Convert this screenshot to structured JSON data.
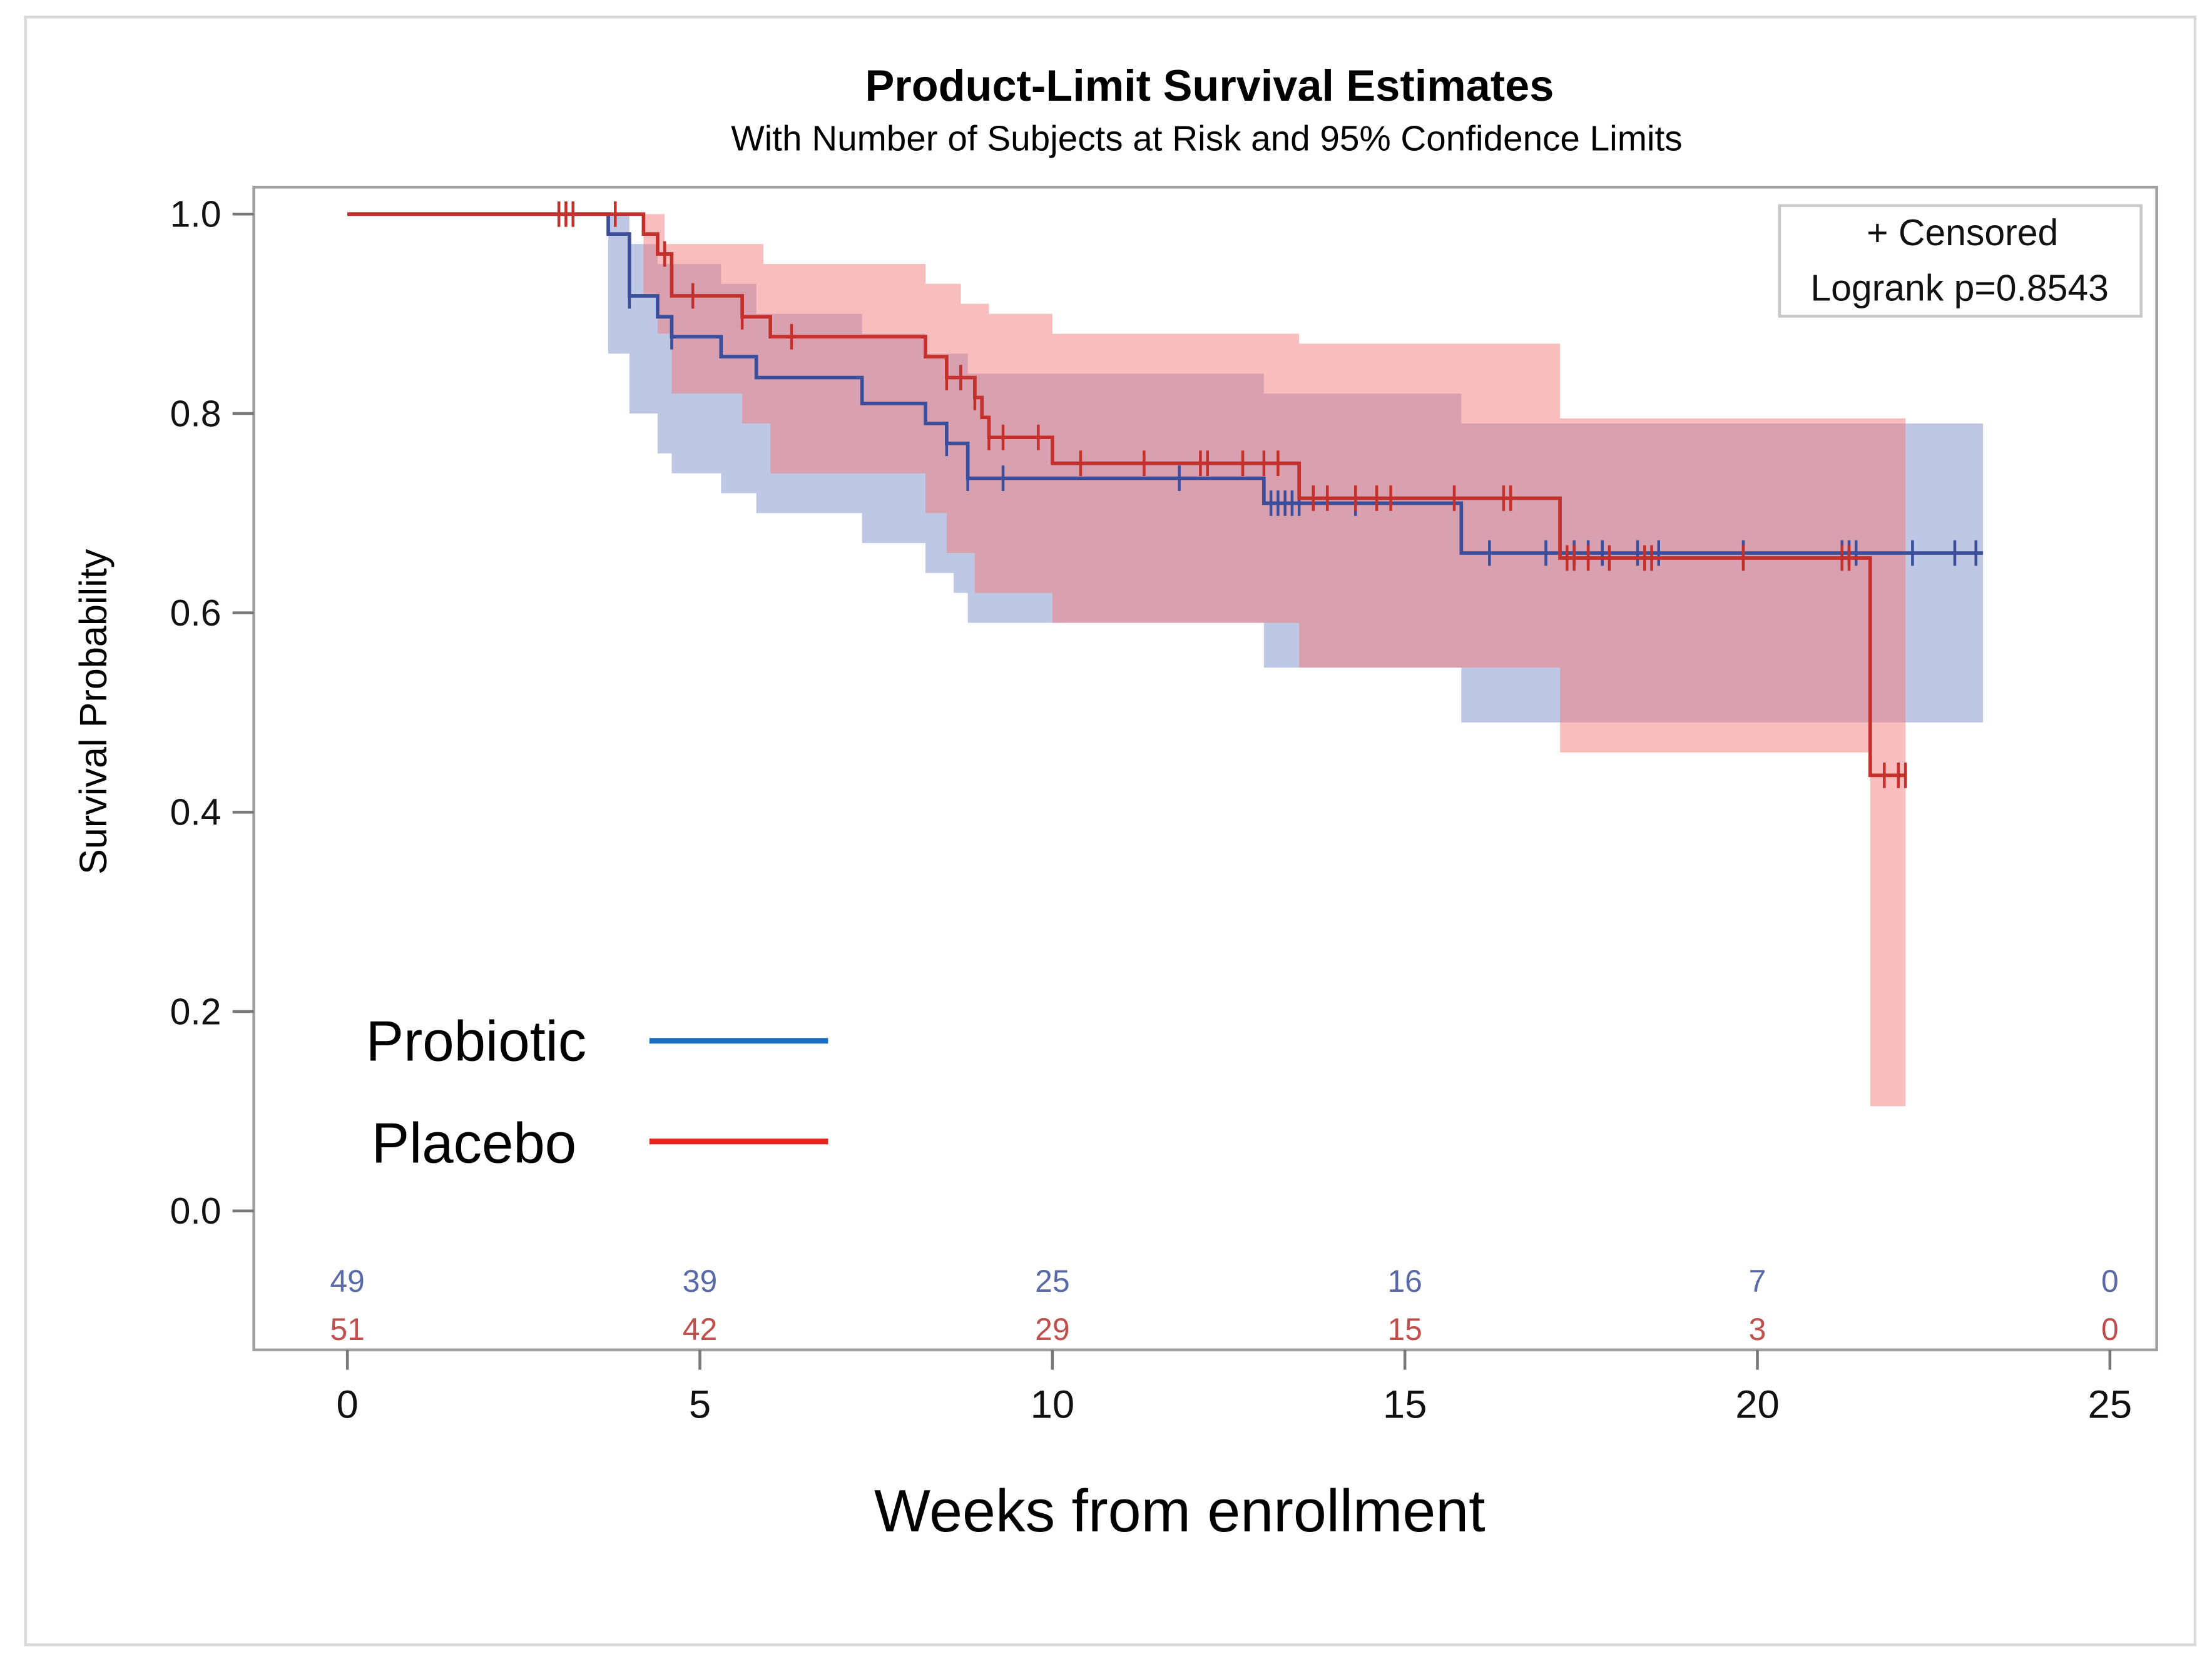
{
  "chart_data": {
    "type": "line",
    "subtype": "kaplan-meier",
    "title": "Product-Limit Survival Estimates",
    "subtitle": "With Number of Subjects at Risk and 95% Confidence Limits",
    "xlabel": "Weeks from enrollment",
    "ylabel": "Survival Probability",
    "xlim": [
      0,
      25
    ],
    "ylim": [
      0,
      1
    ],
    "x_ticks": [
      "0",
      "5",
      "10",
      "15",
      "20",
      "25"
    ],
    "x_tick_values": [
      0,
      5,
      10,
      15,
      20,
      25
    ],
    "y_ticks": [
      "0.0",
      "0.2",
      "0.4",
      "0.6",
      "0.8",
      "1.0"
    ],
    "y_tick_values": [
      0,
      0.2,
      0.4,
      0.6,
      0.8,
      1.0
    ],
    "grid": false,
    "inset": {
      "censored_label": "+ Censored",
      "logrank": "Logrank p=0.8543",
      "placement": "top-right"
    },
    "legend": {
      "placement": "bottom-left",
      "entries": [
        {
          "name": "Probiotic",
          "color": "#1f6fc0"
        },
        {
          "name": "Placebo",
          "color": "#e8221d"
        }
      ]
    },
    "series": [
      {
        "name": "Probiotic",
        "line_color": "#3b4e9c",
        "band_color": "#7d8fc8",
        "steps": [
          [
            0,
            1.0
          ],
          [
            3.7,
            0.98
          ],
          [
            4.0,
            0.918
          ],
          [
            4.4,
            0.897
          ],
          [
            4.6,
            0.877
          ],
          [
            5.3,
            0.857
          ],
          [
            5.8,
            0.836
          ],
          [
            7.3,
            0.81
          ],
          [
            8.2,
            0.79
          ],
          [
            8.5,
            0.77
          ],
          [
            8.8,
            0.735
          ],
          [
            13.0,
            0.71
          ],
          [
            15.8,
            0.66
          ],
          [
            23.2,
            0.66
          ]
        ],
        "ci_lower": [
          [
            0,
            1.0
          ],
          [
            3.7,
            0.86
          ],
          [
            4.0,
            0.8
          ],
          [
            4.4,
            0.76
          ],
          [
            4.6,
            0.74
          ],
          [
            5.3,
            0.72
          ],
          [
            5.8,
            0.7
          ],
          [
            7.3,
            0.67
          ],
          [
            8.2,
            0.64
          ],
          [
            8.6,
            0.62
          ],
          [
            8.8,
            0.59
          ],
          [
            13.0,
            0.545
          ],
          [
            15.8,
            0.49
          ],
          [
            23.2,
            0.49
          ]
        ],
        "ci_upper": [
          [
            0,
            1.0
          ],
          [
            3.7,
            1.0
          ],
          [
            4.0,
            0.97
          ],
          [
            4.4,
            0.95
          ],
          [
            5.3,
            0.93
          ],
          [
            5.8,
            0.9
          ],
          [
            7.3,
            0.88
          ],
          [
            8.2,
            0.86
          ],
          [
            8.8,
            0.84
          ],
          [
            13.0,
            0.82
          ],
          [
            15.8,
            0.79
          ],
          [
            23.2,
            0.79
          ]
        ],
        "censored": [
          4.0,
          4.6,
          8.5,
          8.8,
          9.3,
          11.8,
          13.1,
          13.2,
          13.3,
          13.4,
          13.5,
          14.3,
          16.2,
          17.0,
          17.4,
          17.6,
          17.8,
          18.3,
          18.6,
          19.8,
          21.2,
          21.3,
          21.4,
          22.2,
          22.8,
          23.1
        ],
        "at_risk": [
          "49",
          "39",
          "25",
          "16",
          "7",
          "0"
        ],
        "at_risk_color": "#5a6aa8"
      },
      {
        "name": "Placebo",
        "line_color": "#c4302b",
        "band_color": "#f47c7c",
        "steps": [
          [
            0,
            1.0
          ],
          [
            4.2,
            0.98
          ],
          [
            4.4,
            0.96
          ],
          [
            4.6,
            0.918
          ],
          [
            5.6,
            0.897
          ],
          [
            6.0,
            0.877
          ],
          [
            8.2,
            0.857
          ],
          [
            8.5,
            0.836
          ],
          [
            8.9,
            0.816
          ],
          [
            9.0,
            0.796
          ],
          [
            9.1,
            0.776
          ],
          [
            10.0,
            0.75
          ],
          [
            13.5,
            0.715
          ],
          [
            17.2,
            0.655
          ],
          [
            21.6,
            0.437
          ],
          [
            22.1,
            0.437
          ]
        ],
        "ci_lower": [
          [
            0,
            1.0
          ],
          [
            4.2,
            0.92
          ],
          [
            4.4,
            0.88
          ],
          [
            4.6,
            0.82
          ],
          [
            5.6,
            0.79
          ],
          [
            6.0,
            0.74
          ],
          [
            8.2,
            0.7
          ],
          [
            8.5,
            0.66
          ],
          [
            8.9,
            0.62
          ],
          [
            10.0,
            0.59
          ],
          [
            13.5,
            0.545
          ],
          [
            17.2,
            0.46
          ],
          [
            21.6,
            0.105
          ],
          [
            22.1,
            0.105
          ]
        ],
        "ci_upper": [
          [
            0,
            1.0
          ],
          [
            4.2,
            1.0
          ],
          [
            4.5,
            0.97
          ],
          [
            5.9,
            0.95
          ],
          [
            8.2,
            0.93
          ],
          [
            8.7,
            0.91
          ],
          [
            9.1,
            0.9
          ],
          [
            10.0,
            0.88
          ],
          [
            13.5,
            0.87
          ],
          [
            17.2,
            0.795
          ],
          [
            21.6,
            0.795
          ],
          [
            22.1,
            0.795
          ]
        ],
        "censored": [
          3.0,
          3.1,
          3.2,
          3.8,
          4.5,
          4.9,
          5.6,
          6.3,
          8.5,
          8.7,
          8.9,
          9.1,
          9.3,
          9.8,
          10.4,
          11.3,
          12.1,
          12.2,
          12.7,
          13.0,
          13.2,
          13.7,
          13.9,
          14.3,
          14.6,
          14.8,
          15.7,
          16.4,
          16.5,
          17.3,
          17.4,
          17.6,
          17.9,
          18.4,
          18.5,
          19.8,
          21.2,
          21.3,
          21.8,
          22.0,
          22.1
        ],
        "at_risk": [
          "51",
          "42",
          "29",
          "15",
          "3",
          "0"
        ],
        "at_risk_color": "#c0504d"
      }
    ]
  }
}
